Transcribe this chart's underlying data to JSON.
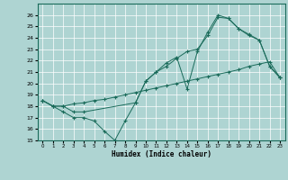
{
  "xlabel": "Humidex (Indice chaleur)",
  "xlim": [
    -0.5,
    23.5
  ],
  "ylim": [
    15,
    27
  ],
  "yticks": [
    15,
    16,
    17,
    18,
    19,
    20,
    21,
    22,
    23,
    24,
    25,
    26
  ],
  "xticks": [
    0,
    1,
    2,
    3,
    4,
    5,
    6,
    7,
    8,
    9,
    10,
    11,
    12,
    13,
    14,
    15,
    16,
    17,
    18,
    19,
    20,
    21,
    22,
    23
  ],
  "bg_color": "#aed4d2",
  "line_color": "#1a6b5a",
  "grid_color": "#ffffff",
  "series1_x": [
    0,
    1,
    2,
    3,
    4,
    5,
    6,
    7,
    8,
    9,
    10,
    11,
    12,
    13,
    14,
    15,
    16,
    17,
    18,
    19,
    20,
    21,
    22,
    23
  ],
  "series1_y": [
    18.5,
    18.0,
    17.5,
    17.0,
    17.0,
    16.7,
    15.8,
    15.0,
    16.7,
    18.3,
    20.2,
    21.0,
    21.8,
    22.3,
    19.5,
    22.8,
    24.5,
    26.0,
    25.7,
    24.8,
    24.3,
    23.8,
    21.5,
    20.5
  ],
  "series2_x": [
    0,
    1,
    2,
    3,
    4,
    5,
    6,
    7,
    8,
    9,
    10,
    11,
    12,
    13,
    14,
    15,
    16,
    17,
    18,
    19,
    20,
    21,
    22,
    23
  ],
  "series2_y": [
    18.5,
    18.0,
    18.0,
    18.2,
    18.3,
    18.5,
    18.6,
    18.8,
    19.0,
    19.2,
    19.4,
    19.6,
    19.8,
    20.0,
    20.2,
    20.4,
    20.6,
    20.8,
    21.0,
    21.2,
    21.5,
    21.7,
    21.9,
    20.5
  ],
  "series3_x": [
    0,
    1,
    2,
    3,
    4,
    9,
    10,
    11,
    12,
    13,
    14,
    15,
    16,
    17,
    18,
    19,
    20,
    21,
    22,
    23
  ],
  "series3_y": [
    18.5,
    18.0,
    18.0,
    17.5,
    17.5,
    18.3,
    20.2,
    21.0,
    21.5,
    22.2,
    22.8,
    23.0,
    24.2,
    25.8,
    25.7,
    24.8,
    24.2,
    23.8,
    21.5,
    20.5
  ]
}
